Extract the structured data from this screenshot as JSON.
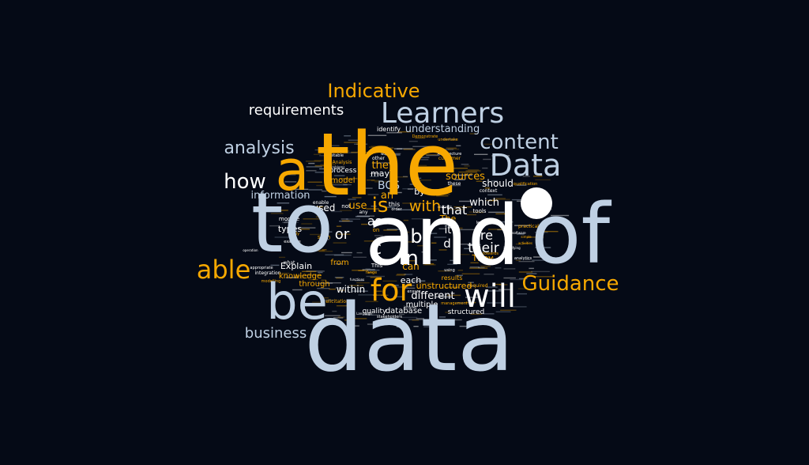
{
  "colors": {
    "background": "#050a16",
    "white": "#ffffff",
    "blue_grey": "#bfd0e3",
    "amber": "#f7a800"
  },
  "words": [
    {
      "text": "data",
      "color": "blue_grey"
    },
    {
      "text": "to",
      "color": "blue_grey"
    },
    {
      "text": "of",
      "color": "blue_grey"
    },
    {
      "text": "and",
      "color": "white"
    },
    {
      "text": "the",
      "color": "amber"
    },
    {
      "text": "a",
      "color": "amber"
    },
    {
      "text": "be",
      "color": "blue_grey"
    },
    {
      "text": "will",
      "color": "white"
    },
    {
      "text": "for",
      "color": "amber"
    },
    {
      "text": "Data",
      "color": "blue_grey"
    },
    {
      "text": "Learners",
      "color": "blue_grey"
    },
    {
      "text": "content",
      "color": "blue_grey"
    },
    {
      "text": "Guidance",
      "color": "amber"
    },
    {
      "text": "able",
      "color": "amber"
    },
    {
      "text": "Indicative",
      "color": "amber"
    },
    {
      "text": "analysis",
      "color": "blue_grey"
    },
    {
      "text": "how",
      "color": "white"
    },
    {
      "text": "requirements",
      "color": "white"
    },
    {
      "text": "business",
      "color": "blue_grey"
    },
    {
      "text": "in",
      "color": "white"
    },
    {
      "text": "is",
      "color": "amber"
    },
    {
      "text": "b",
      "color": "white"
    },
    {
      "text": "c",
      "color": "white"
    },
    {
      "text": "with",
      "color": "amber"
    },
    {
      "text": "their",
      "color": "white"
    },
    {
      "text": "are",
      "color": "white"
    },
    {
      "text": "that",
      "color": "white"
    },
    {
      "text": "or",
      "color": "white"
    },
    {
      "text": "as",
      "color": "white"
    },
    {
      "text": "it",
      "color": "white"
    },
    {
      "text": "d",
      "color": "white"
    },
    {
      "text": "understanding",
      "color": "blue_grey"
    },
    {
      "text": "information",
      "color": "blue_grey"
    },
    {
      "text": "sources",
      "color": "amber"
    },
    {
      "text": "BCS",
      "color": "blue_grey"
    },
    {
      "text": "they",
      "color": "amber"
    },
    {
      "text": "an",
      "color": "amber"
    },
    {
      "text": "may",
      "color": "white"
    },
    {
      "text": "by",
      "color": "white"
    },
    {
      "text": "should",
      "color": "white"
    },
    {
      "text": "which",
      "color": "white"
    },
    {
      "text": "used",
      "color": "white"
    },
    {
      "text": "use",
      "color": "amber"
    },
    {
      "text": "types",
      "color": "white"
    },
    {
      "text": "Explain",
      "color": "white"
    },
    {
      "text": "knowledge",
      "color": "amber"
    },
    {
      "text": "through",
      "color": "amber"
    },
    {
      "text": "within",
      "color": "white"
    },
    {
      "text": "different",
      "color": "white"
    },
    {
      "text": "unstructured",
      "color": "amber"
    },
    {
      "text": "multiple",
      "color": "white"
    },
    {
      "text": "database",
      "color": "white"
    },
    {
      "text": "quality",
      "color": "white"
    },
    {
      "text": "structured",
      "color": "white"
    },
    {
      "text": "can",
      "color": "amber"
    },
    {
      "text": "each",
      "color": "white"
    },
    {
      "text": "They",
      "color": "amber"
    },
    {
      "text": "The",
      "color": "amber"
    },
    {
      "text": "model",
      "color": "amber"
    },
    {
      "text": "process",
      "color": "white"
    },
    {
      "text": "from",
      "color": "amber"
    },
    {
      "text": "identify",
      "color": "white"
    },
    {
      "text": "results",
      "color": "amber"
    },
    {
      "text": "module",
      "color": "white"
    },
    {
      "text": "integration",
      "color": "white"
    },
    {
      "text": "tools",
      "color": "white"
    },
    {
      "text": "this",
      "color": "white"
    },
    {
      "text": "not",
      "color": "white"
    },
    {
      "text": "such",
      "color": "amber"
    },
    {
      "text": "these",
      "color": "white"
    },
    {
      "text": "other",
      "color": "white"
    },
    {
      "text": "context",
      "color": "white"
    },
    {
      "text": "what",
      "color": "white"
    },
    {
      "text": "modelling",
      "color": "amber"
    },
    {
      "text": "elicitation",
      "color": "amber"
    },
    {
      "text": "stakeholders",
      "color": "white"
    },
    {
      "text": "customer",
      "color": "amber"
    },
    {
      "text": "Analysis",
      "color": "amber"
    },
    {
      "text": "enable",
      "color": "white"
    },
    {
      "text": "practical",
      "color": "amber"
    },
    {
      "text": "required",
      "color": "amber"
    },
    {
      "text": "using",
      "color": "white"
    },
    {
      "text": "This",
      "color": "white"
    },
    {
      "text": "at",
      "color": "white"
    },
    {
      "text": "on",
      "color": "amber"
    },
    {
      "text": "any",
      "color": "white"
    },
    {
      "text": "ensure",
      "color": "white"
    },
    {
      "text": "management",
      "color": "amber"
    },
    {
      "text": "analytics",
      "color": "white"
    },
    {
      "text": "order",
      "color": "white"
    },
    {
      "text": "towards",
      "color": "amber"
    },
    {
      "text": "undertake",
      "color": "amber"
    },
    {
      "text": "Demonstrate",
      "color": "amber"
    },
    {
      "text": "Architecture",
      "color": "white"
    },
    {
      "text": "qualification",
      "color": "amber"
    },
    {
      "text": "suitable",
      "color": "white"
    },
    {
      "text": "problems",
      "color": "white"
    },
    {
      "text": "working",
      "color": "white"
    },
    {
      "text": "learners",
      "color": "white"
    },
    {
      "text": "software",
      "color": "white"
    },
    {
      "text": "example",
      "color": "white"
    },
    {
      "text": "includes",
      "color": "white"
    },
    {
      "text": "range",
      "color": "amber"
    },
    {
      "text": "appropriate",
      "color": "white"
    },
    {
      "text": "operation",
      "color": "white"
    },
    {
      "text": "Apply",
      "color": "amber"
    },
    {
      "text": "concepts",
      "color": "white"
    },
    {
      "text": "identifying",
      "color": "white"
    },
    {
      "text": "functions",
      "color": "white"
    },
    {
      "text": "Language",
      "color": "white"
    },
    {
      "text": "simple",
      "color": "amber"
    },
    {
      "text": "activities",
      "color": "amber"
    }
  ]
}
